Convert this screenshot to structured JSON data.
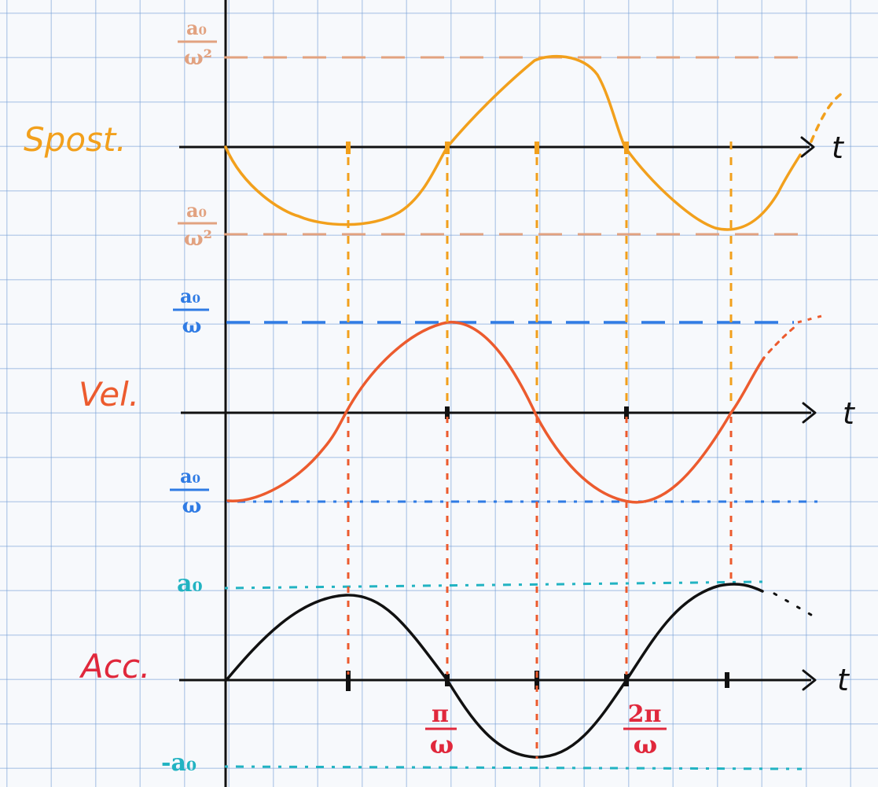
{
  "colors": {
    "displacement": "#f2a01c",
    "displacement_bound": "#e2a280",
    "velocity": "#ec5b2e",
    "velocity_bound": "#2f7be4",
    "acceleration": "#111111",
    "acceleration_bound": "#22b3c2",
    "tick_label": "#e0283c",
    "axis": "#111111"
  },
  "labels": {
    "displacement": "Spost.",
    "velocity": "Vel.",
    "acceleration": "Acc.",
    "time_axis": "t"
  },
  "bounds": {
    "displacement_top": {
      "num": "a₀",
      "den": "ω²"
    },
    "displacement_bottom": {
      "num": "a₀",
      "den": "ω²"
    },
    "velocity_top": {
      "num": "a₀",
      "den": "ω"
    },
    "velocity_bottom": {
      "num": "a₀",
      "den": "ω"
    },
    "acceleration_top": "a₀",
    "acceleration_bottom": "-a₀"
  },
  "ticks": {
    "pi_over_omega": {
      "num": "π",
      "den": "ω"
    },
    "two_pi_over_omega": {
      "num": "2π",
      "den": "ω"
    }
  }
}
